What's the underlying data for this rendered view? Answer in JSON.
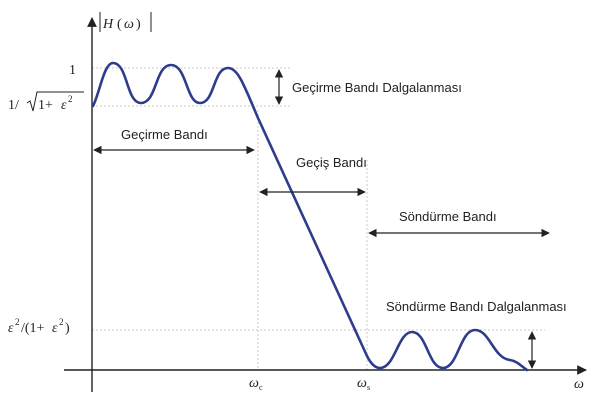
{
  "colors": {
    "curve": "#2e3c8c",
    "axis": "#222222",
    "guide": "#c8c8c8",
    "arrow": "#222222",
    "text": "#222222"
  },
  "axes": {
    "y_label": "|H(ω)|",
    "x_label": "ω"
  },
  "y_ticks": {
    "one": "1",
    "pass_min": "1/ √1+ε²",
    "stop_max": "ε²/(1+ε²)"
  },
  "x_ticks": {
    "cutoff": "ωc",
    "stop_edge": "ωs"
  },
  "regions": {
    "passband": "Geçirme Bandı",
    "transition": "Geçiş Bandı",
    "stopband": "Söndürme Bandı",
    "passband_ripple": "Geçirme Bandı Dalgalanması",
    "stopband_ripple": "Söndürme Bandı Dalgalanması"
  }
}
